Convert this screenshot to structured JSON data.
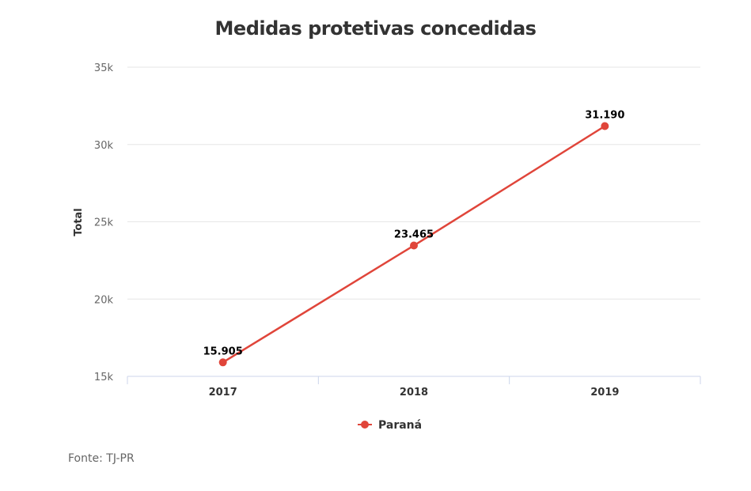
{
  "chart_data": {
    "type": "line",
    "title": "Medidas protetivas concedidas",
    "xlabel": "",
    "ylabel": "Total",
    "categories": [
      "2017",
      "2018",
      "2019"
    ],
    "series": [
      {
        "name": "Paraná",
        "values": [
          15905,
          23465,
          31190
        ],
        "labels": [
          "15.905",
          "23.465",
          "31.190"
        ],
        "color": "#e0453a"
      }
    ],
    "ylim": [
      15000,
      35000
    ],
    "yticks": [
      15000,
      20000,
      25000,
      30000,
      35000
    ],
    "ytick_labels": [
      "15k",
      "20k",
      "25k",
      "30k",
      "35k"
    ],
    "grid": true,
    "legend_position": "bottom-center"
  },
  "source": "Fonte: TJ-PR"
}
